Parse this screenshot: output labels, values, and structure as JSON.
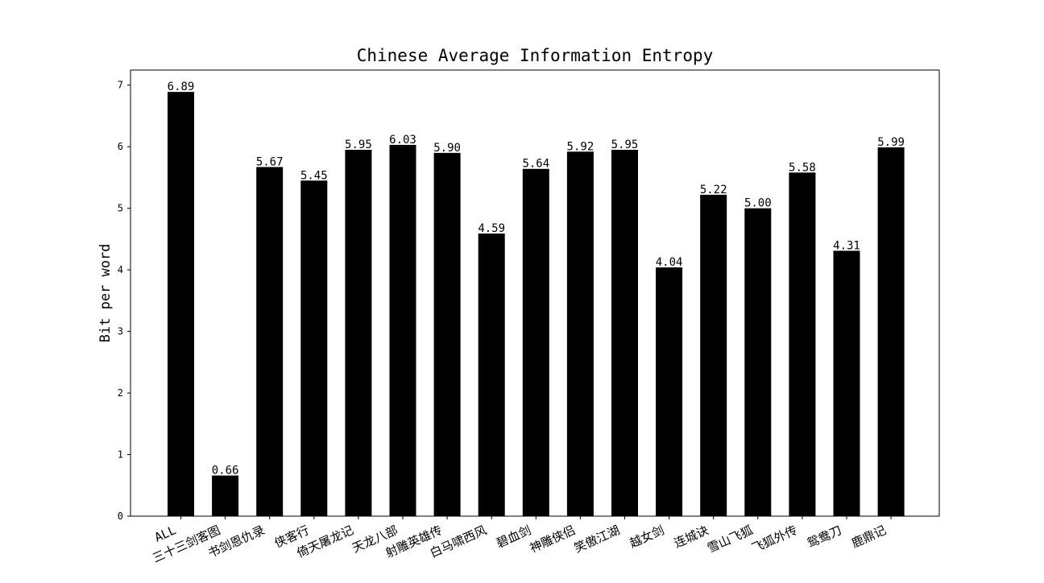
{
  "chart_data": {
    "type": "bar",
    "title": "Chinese Average Information Entropy",
    "xlabel": "",
    "ylabel": "Bit per word",
    "categories": [
      "ALL",
      "三十三剑客图",
      "书剑恩仇录",
      "侠客行",
      "倚天屠龙记",
      "天龙八部",
      "射雕英雄传",
      "白马啸西风",
      "碧血剑",
      "神雕侠侣",
      "笑傲江湖",
      "越女剑",
      "连城诀",
      "雪山飞狐",
      "飞狐外传",
      "鸳鸯刀",
      "鹿鼎记"
    ],
    "values": [
      6.89,
      0.66,
      5.67,
      5.45,
      5.95,
      6.03,
      5.9,
      4.59,
      5.64,
      5.92,
      5.95,
      4.04,
      5.22,
      5.0,
      5.58,
      4.31,
      5.99
    ],
    "value_labels": [
      "6.89",
      "0.66",
      "5.67",
      "5.45",
      "5.95",
      "6.03",
      "5.90",
      "4.59",
      "5.64",
      "5.92",
      "5.95",
      "4.04",
      "5.22",
      "5.00",
      "5.58",
      "4.31",
      "5.99"
    ],
    "yticks": [
      "0",
      "1",
      "2",
      "3",
      "4",
      "5",
      "6",
      "7"
    ],
    "ylim": [
      0,
      7.245
    ],
    "bar_color": "#000000",
    "grid": false,
    "legend": "none",
    "xtick_rotation": "rotated, anchored at upper right"
  }
}
